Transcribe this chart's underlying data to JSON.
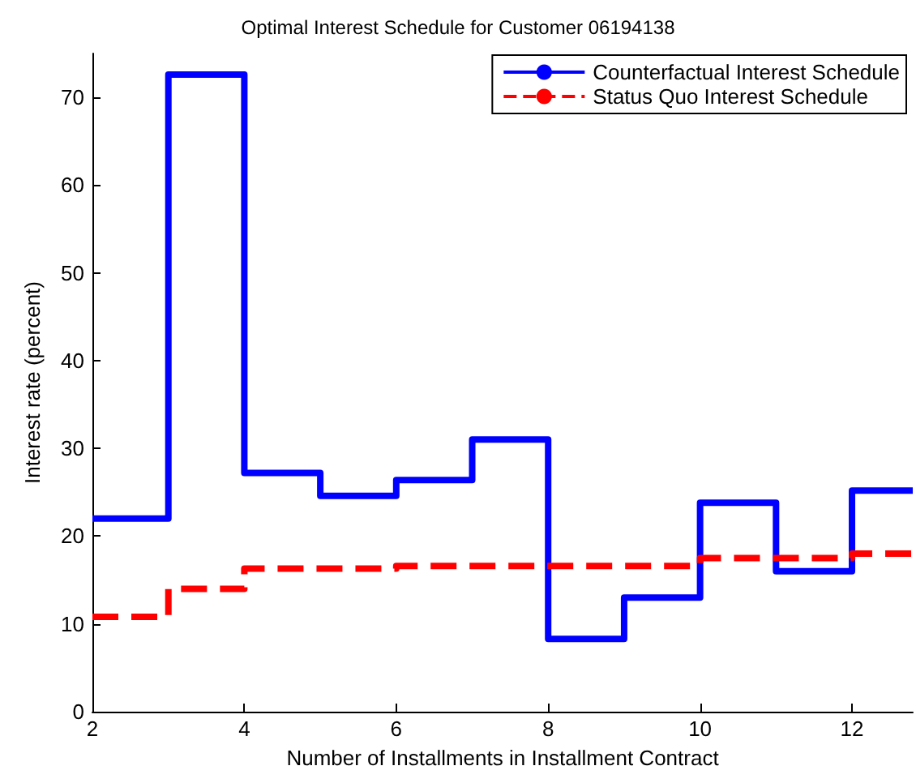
{
  "chart_data": {
    "type": "step",
    "title": "Optimal Interest Schedule for Customer 06194138",
    "xlabel": "Number of Installments in Installment Contract",
    "ylabel": "Interest rate (percent)",
    "x": [
      2,
      3,
      4,
      5,
      6,
      7,
      8,
      9,
      10,
      11,
      12,
      12.8
    ],
    "series": [
      {
        "name": "Counterfactual Interest Schedule",
        "color": "#0000ff",
        "line_style": "solid",
        "values": [
          22,
          72.6,
          27.2,
          24.6,
          26.4,
          31,
          8.3,
          13,
          23.8,
          16,
          25.2,
          25.2
        ]
      },
      {
        "name": "Status Quo Interest Schedule",
        "color": "#ff0000",
        "line_style": "dashed",
        "values": [
          10.8,
          14,
          16.3,
          16.3,
          16.6,
          16.6,
          16.6,
          16.6,
          17.5,
          17.5,
          18,
          18
        ]
      }
    ],
    "xlim": [
      2,
      12.8
    ],
    "xticks": [
      2,
      4,
      6,
      8,
      10,
      12
    ],
    "ylim": [
      0,
      75
    ],
    "yticks": [
      0,
      10,
      20,
      30,
      40,
      50,
      60,
      70
    ],
    "grid": false,
    "legend": "top right",
    "marker": "none"
  }
}
